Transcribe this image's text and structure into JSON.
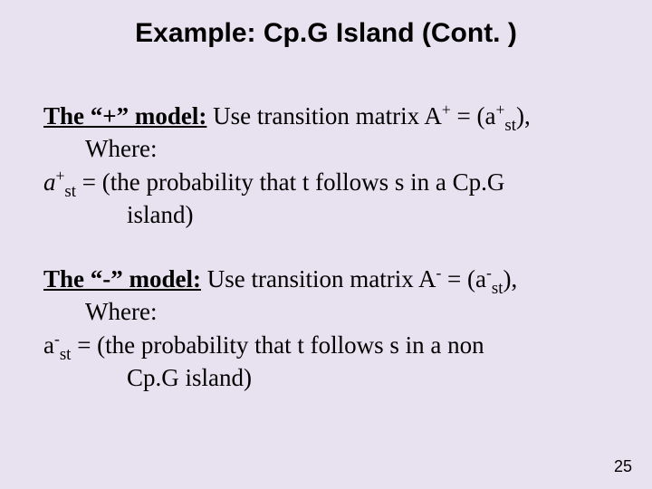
{
  "slide": {
    "title": "Example: Cp.G Island (Cont. )",
    "page_number": "25",
    "background_color": "#e8e1f0",
    "title_font": {
      "family": "Arial",
      "weight": "bold",
      "size_pt": 30
    },
    "body_font": {
      "family": "Times New Roman",
      "size_pt": 27
    },
    "plus_model": {
      "heading": "The “+” model:",
      "line1_tail": " Use transition matrix A",
      "line1_end": " = (a",
      "line1_close": "),",
      "sup_plus1": "+",
      "sup_plus2": "+",
      "sub_st1": "st",
      "where": "Where:",
      "def_sym": "a",
      "def_sup": "+",
      "def_sub": "st",
      "def_text_a": " = (the probability  that t follows s in a Cp.G",
      "def_text_b": "island)"
    },
    "minus_model": {
      "heading": "The “-” model:",
      "line1_tail": " Use transition matrix A",
      "line1_end": " = (a",
      "line1_close": "),",
      "sup_minus1": "-",
      "sup_minus2": "-",
      "sub_st1": "st",
      "where": "Where:",
      "def_sym": "a",
      "def_sup": "-",
      "def_sub": "st",
      "def_text_a": " = (the probability  that t follows s in a non",
      "def_text_b": "Cp.G island)"
    }
  }
}
